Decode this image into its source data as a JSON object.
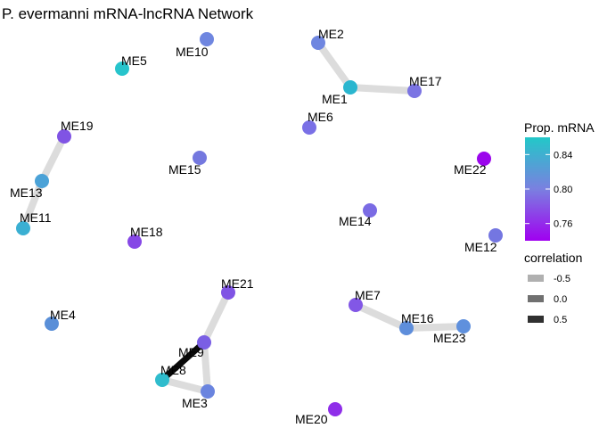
{
  "title": "P. evermanni mRNA-lncRNA Network",
  "nodes": [
    {
      "id": "ME10",
      "label": "ME10",
      "color": "#6f86e0"
    },
    {
      "id": "ME2",
      "label": "ME2",
      "color": "#6f86e0"
    },
    {
      "id": "ME5",
      "label": "ME5",
      "color": "#27c4cc"
    },
    {
      "id": "ME1",
      "label": "ME1",
      "color": "#2ab6cf"
    },
    {
      "id": "ME17",
      "label": "ME17",
      "color": "#7b74e3"
    },
    {
      "id": "ME6",
      "label": "ME6",
      "color": "#7a70e6"
    },
    {
      "id": "ME19",
      "label": "ME19",
      "color": "#8054e4"
    },
    {
      "id": "ME22",
      "label": "ME22",
      "color": "#9b06ec"
    },
    {
      "id": "ME15",
      "label": "ME15",
      "color": "#7478df"
    },
    {
      "id": "ME13",
      "label": "ME13",
      "color": "#4ba2d7"
    },
    {
      "id": "ME14",
      "label": "ME14",
      "color": "#7a6be4"
    },
    {
      "id": "ME11",
      "label": "ME11",
      "color": "#3aafd2"
    },
    {
      "id": "ME12",
      "label": "ME12",
      "color": "#7476e1"
    },
    {
      "id": "ME18",
      "label": "ME18",
      "color": "#8648e6"
    },
    {
      "id": "ME21",
      "label": "ME21",
      "color": "#8054e4"
    },
    {
      "id": "ME7",
      "label": "ME7",
      "color": "#8257e6"
    },
    {
      "id": "ME4",
      "label": "ME4",
      "color": "#5a8fd8"
    },
    {
      "id": "ME16",
      "label": "ME16",
      "color": "#5e8edb"
    },
    {
      "id": "ME23",
      "label": "ME23",
      "color": "#5f90dd"
    },
    {
      "id": "ME9",
      "label": "ME9",
      "color": "#7a5fe4"
    },
    {
      "id": "ME8",
      "label": "ME8",
      "color": "#2fbccd"
    },
    {
      "id": "ME3",
      "label": "ME3",
      "color": "#6a84df"
    },
    {
      "id": "ME20",
      "label": "ME20",
      "color": "#8f2ee9"
    }
  ],
  "edges": [
    {
      "source": "ME2",
      "target": "ME1",
      "correlation": -0.6
    },
    {
      "source": "ME1",
      "target": "ME17",
      "correlation": -0.6
    },
    {
      "source": "ME19",
      "target": "ME13",
      "correlation": -0.6
    },
    {
      "source": "ME13",
      "target": "ME11",
      "correlation": -0.6
    },
    {
      "source": "ME21",
      "target": "ME9",
      "correlation": -0.6
    },
    {
      "source": "ME9",
      "target": "ME3",
      "correlation": -0.6
    },
    {
      "source": "ME8",
      "target": "ME3",
      "correlation": -0.6
    },
    {
      "source": "ME9",
      "target": "ME8",
      "correlation": 0.7
    },
    {
      "source": "ME7",
      "target": "ME16",
      "correlation": -0.6
    },
    {
      "source": "ME16",
      "target": "ME23",
      "correlation": -0.6
    }
  ],
  "legend_color": {
    "title": "Prop. mRNA",
    "ticks": [
      "0.84",
      "0.80",
      "0.76"
    ],
    "tick_values": [
      0.84,
      0.8,
      0.76
    ],
    "range": [
      0.74,
      0.86
    ],
    "color_low": "#a000f0",
    "color_mid": "#7a80e0",
    "color_high": "#22c8c8"
  },
  "legend_edge": {
    "title": "correlation",
    "entries": [
      {
        "label": "-0.5",
        "color": "#b0b0b0"
      },
      {
        "label": "0.0",
        "color": "#707070"
      },
      {
        "label": "0.5",
        "color": "#303030"
      }
    ]
  }
}
